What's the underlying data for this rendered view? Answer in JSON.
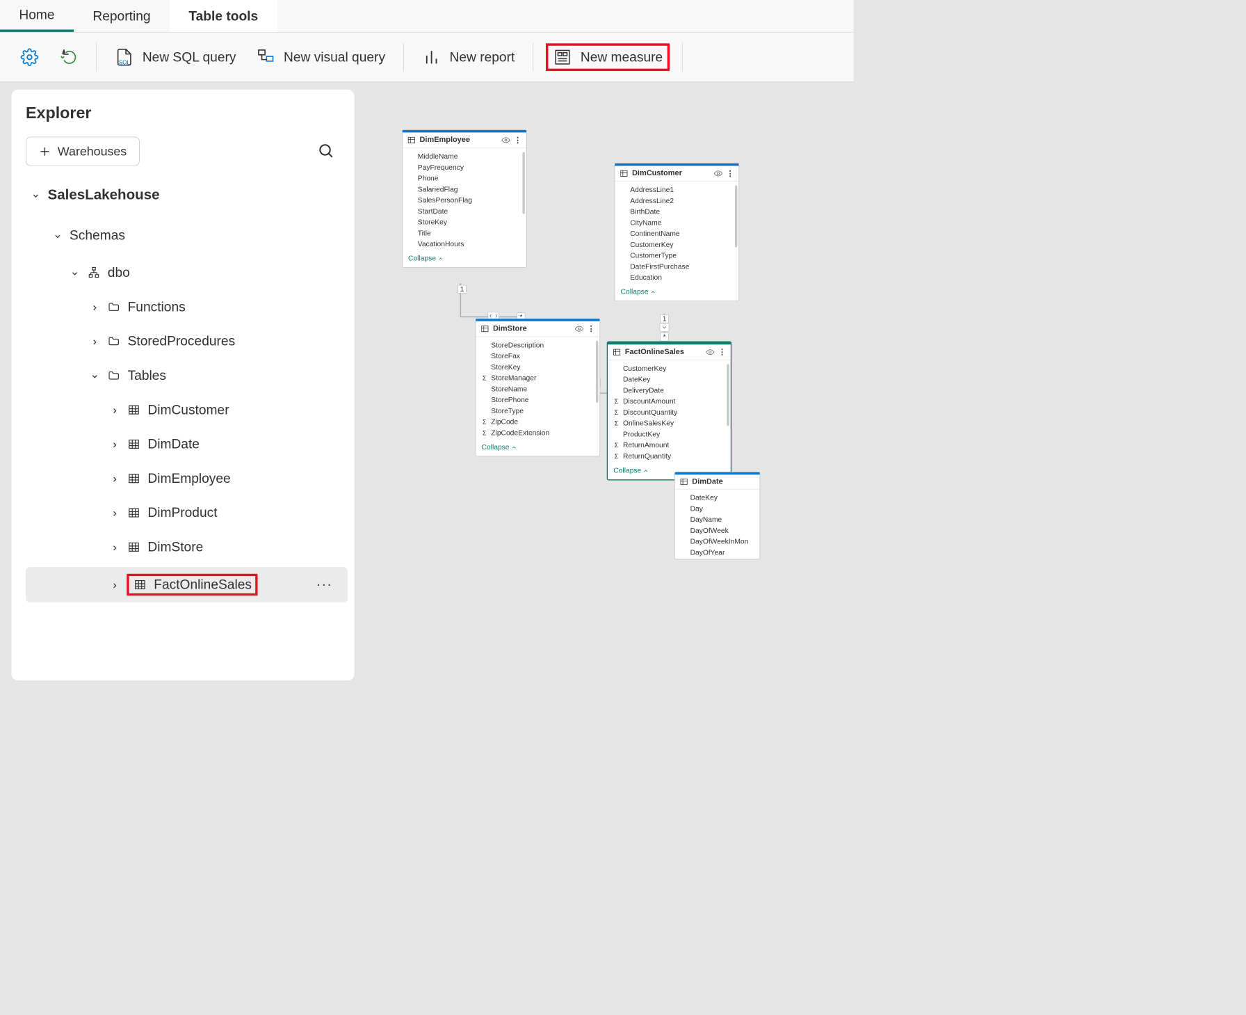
{
  "tabs": {
    "home": "Home",
    "reporting": "Reporting",
    "table_tools": "Table tools"
  },
  "toolbar": {
    "new_sql_query": "New SQL query",
    "new_visual_query": "New visual query",
    "new_report": "New report",
    "new_measure": "New measure"
  },
  "explorer": {
    "title": "Explorer",
    "warehouses_button": "Warehouses",
    "tree": {
      "root": "SalesLakehouse",
      "schemas": "Schemas",
      "dbo": "dbo",
      "functions": "Functions",
      "stored_procedures": "StoredProcedures",
      "tables": "Tables",
      "table_items": [
        "DimCustomer",
        "DimDate",
        "DimEmployee",
        "DimProduct",
        "DimStore",
        "FactOnlineSales"
      ]
    }
  },
  "canvas": {
    "collapse_label": "Collapse",
    "nodes": {
      "dim_employee": {
        "title": "DimEmployee",
        "fields": [
          "MiddleName",
          "PayFrequency",
          "Phone",
          "SalariedFlag",
          "SalesPersonFlag",
          "StartDate",
          "StoreKey",
          "Title",
          "VacationHours"
        ]
      },
      "dim_customer": {
        "title": "DimCustomer",
        "fields": [
          "AddressLine1",
          "AddressLine2",
          "BirthDate",
          "CityName",
          "ContinentName",
          "CustomerKey",
          "CustomerType",
          "DateFirstPurchase",
          "Education"
        ]
      },
      "dim_store": {
        "title": "DimStore",
        "fields": [
          "StoreDescription",
          "StoreFax",
          "StoreKey",
          "StoreManager",
          "StoreName",
          "StorePhone",
          "StoreType",
          "ZipCode",
          "ZipCodeExtension"
        ],
        "sigma_fields": [
          "StoreManager",
          "ZipCode",
          "ZipCodeExtension"
        ]
      },
      "fact_online_sales": {
        "title": "FactOnlineSales",
        "fields": [
          "CustomerKey",
          "DateKey",
          "DeliveryDate",
          "DiscountAmount",
          "DiscountQuantity",
          "OnlineSalesKey",
          "ProductKey",
          "ReturnAmount",
          "ReturnQuantity"
        ],
        "sigma_fields": [
          "DiscountAmount",
          "DiscountQuantity",
          "OnlineSalesKey",
          "ReturnAmount",
          "ReturnQuantity"
        ]
      },
      "dim_date": {
        "title": "DimDate",
        "fields": [
          "DateKey",
          "Day",
          "DayName",
          "DayOfWeek",
          "DayOfWeekInMon",
          "DayOfYear"
        ]
      }
    },
    "cardinality": {
      "one": "1",
      "many": "*"
    }
  },
  "colors": {
    "highlight": "#e81123",
    "accent": "#0078d4",
    "teal": "#0f7b6c",
    "canvas_bg": "#e5e5e5"
  }
}
